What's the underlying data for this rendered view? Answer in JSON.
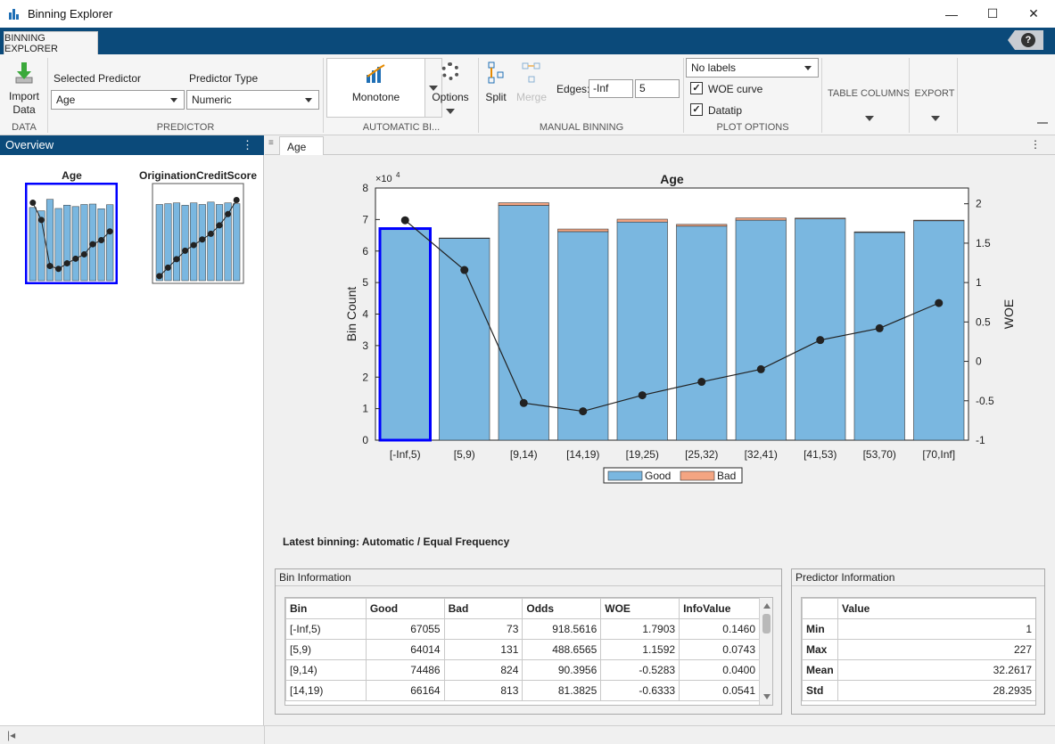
{
  "window": {
    "title": "Binning Explorer"
  },
  "ribbon": {
    "tab_label": "BINNING EXPLORER",
    "help_label": "?",
    "import_label": "Import Data",
    "data_group": "DATA",
    "selected_predictor_label": "Selected Predictor",
    "selected_predictor_value": "Age",
    "predictor_type_label": "Predictor Type",
    "predictor_type_value": "Numeric",
    "predictor_group": "PREDICTOR",
    "monotone_label": "Monotone",
    "options_label": "Options",
    "auto_group": "AUTOMATIC BI...",
    "split_label": "Split",
    "merge_label": "Merge",
    "edges_label": "Edges:",
    "edges_value1": "-Inf",
    "edges_value2": "5",
    "manual_group": "MANUAL BINNING",
    "labels_value": "No labels",
    "woe_curve_label": "WOE curve",
    "datatip_label": "Datatip",
    "plot_group": "PLOT OPTIONS",
    "table_columns_label": "TABLE COLUMNS",
    "export_label": "EXPORT"
  },
  "overview": {
    "header": "Overview",
    "thumbs": [
      {
        "title": "Age"
      },
      {
        "title": "OriginationCreditScore"
      }
    ]
  },
  "doc_tab": "Age",
  "chart_data": {
    "type": "bar",
    "title": "Age",
    "ylabel": "Bin Count",
    "y2label": "WOE",
    "y_exponent": "×10",
    "y_exponent_power": "4",
    "ylim": [
      0,
      8
    ],
    "y2lim": [
      -1,
      2.2
    ],
    "y_ticks": [
      "0",
      "1",
      "2",
      "3",
      "4",
      "5",
      "6",
      "7",
      "8"
    ],
    "y2_ticks": [
      "-1",
      "-0.5",
      "0",
      "0.5",
      "1",
      "1.5",
      "2"
    ],
    "categories": [
      "[-Inf,5)",
      "[5,9)",
      "[9,14)",
      "[14,19)",
      "[19,25)",
      "[25,32)",
      "[32,41)",
      "[41,53)",
      "[53,70)",
      "[70,Inf]"
    ],
    "series": [
      {
        "name": "Good",
        "values": [
          67055,
          64014,
          74486,
          66164,
          69200,
          67900,
          69800,
          70200,
          65900,
          69600
        ]
      },
      {
        "name": "Bad",
        "values": [
          73,
          131,
          824,
          813,
          900,
          560,
          700,
          250,
          200,
          200
        ]
      }
    ],
    "woe": [
      1.7903,
      1.1592,
      -0.5283,
      -0.6333,
      -0.43,
      -0.26,
      -0.1,
      0.27,
      0.42,
      0.74
    ],
    "selected_bin": 0,
    "legend": [
      "Good",
      "Bad"
    ],
    "legend_position": "bottom",
    "colors": {
      "good": "#7ab7e0",
      "bad": "#f4a582",
      "woe": "#222222",
      "selected": "#0000ff"
    }
  },
  "latest_binning": "Latest binning: Automatic / Equal Frequency",
  "bin_info": {
    "title": "Bin Information",
    "columns": [
      "Bin",
      "Good",
      "Bad",
      "Odds",
      "WOE",
      "InfoValue"
    ],
    "rows": [
      [
        "[-Inf,5)",
        "67055",
        "73",
        "918.5616",
        "1.7903",
        "0.1460"
      ],
      [
        "[5,9)",
        "64014",
        "131",
        "488.6565",
        "1.1592",
        "0.0743"
      ],
      [
        "[9,14)",
        "74486",
        "824",
        "90.3956",
        "-0.5283",
        "0.0400"
      ],
      [
        "[14,19)",
        "66164",
        "813",
        "81.3825",
        "-0.6333",
        "0.0541"
      ]
    ]
  },
  "predictor_info": {
    "title": "Predictor Information",
    "column": "Value",
    "rows": [
      [
        "Min",
        "1"
      ],
      [
        "Max",
        "227"
      ],
      [
        "Mean",
        "32.2617"
      ],
      [
        "Std",
        "28.2935"
      ]
    ]
  }
}
